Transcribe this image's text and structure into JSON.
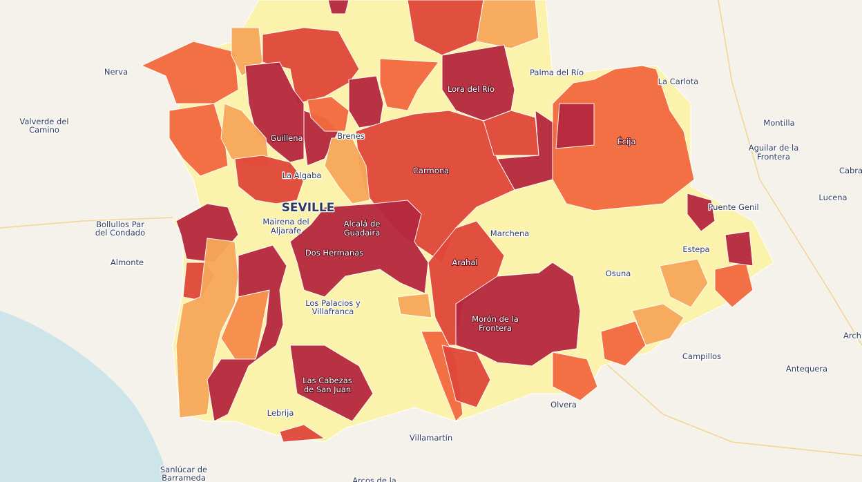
{
  "places": [
    [
      "Nerva"
    ],
    [
      "Valverde del",
      "Camino"
    ],
    [
      "Bollullos Par",
      "del Condado"
    ],
    [
      "Almonte"
    ],
    [
      "Sanlúcar de",
      "Barrameda"
    ],
    [
      "Arcos de la"
    ],
    [
      "Villamartín"
    ],
    [
      "Lebrija"
    ],
    [
      "Las Cabezas",
      "de San Juan"
    ],
    [
      "Los Palacios y",
      "Villafranca"
    ],
    [
      "Dos Hermanas"
    ],
    [
      "Mairena del",
      "Aljarafe"
    ],
    [
      "SEVILLE"
    ],
    [
      "La Algaba"
    ],
    [
      "Guillena"
    ],
    [
      "Brenes"
    ],
    [
      "Carmona"
    ],
    [
      "Alcalá de",
      "Guadaira"
    ],
    [
      "Arahal"
    ],
    [
      "Marchena"
    ],
    [
      "Morón de la",
      "Frontera"
    ],
    [
      "Osuna"
    ],
    [
      "Olvera"
    ],
    [
      "Campillos"
    ],
    [
      "Antequera"
    ],
    [
      "Arch"
    ],
    [
      "Estepa"
    ],
    [
      "Puente Genil"
    ],
    [
      "Lucena"
    ],
    [
      "Cabra"
    ],
    [
      "Aguilar de la",
      "Frontera"
    ],
    [
      "Montilla"
    ],
    [
      "La Carlota"
    ],
    [
      "Palma del Río"
    ],
    [
      "Lora del Río"
    ],
    [
      "Écija"
    ]
  ]
}
